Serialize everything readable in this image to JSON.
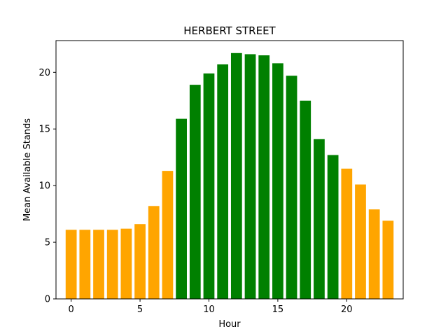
{
  "chart_data": {
    "type": "bar",
    "title": "HERBERT STREET",
    "xlabel": "Hour",
    "ylabel": "Mean Available Stands",
    "x": [
      0,
      1,
      2,
      3,
      4,
      5,
      6,
      7,
      8,
      9,
      10,
      11,
      12,
      13,
      14,
      15,
      16,
      17,
      18,
      19,
      20,
      21,
      22,
      23
    ],
    "values": [
      6.1,
      6.1,
      6.1,
      6.1,
      6.2,
      6.6,
      8.2,
      11.3,
      15.9,
      18.9,
      19.9,
      20.7,
      21.7,
      21.6,
      21.5,
      20.8,
      19.7,
      17.5,
      14.1,
      12.7,
      11.5,
      10.1,
      7.9,
      6.9
    ],
    "bar_colors": [
      "#ffa500",
      "#ffa500",
      "#ffa500",
      "#ffa500",
      "#ffa500",
      "#ffa500",
      "#ffa500",
      "#ffa500",
      "#008000",
      "#008000",
      "#008000",
      "#008000",
      "#008000",
      "#008000",
      "#008000",
      "#008000",
      "#008000",
      "#008000",
      "#008000",
      "#008000",
      "#ffa500",
      "#ffa500",
      "#ffa500",
      "#ffa500"
    ],
    "xticks": [
      0,
      5,
      10,
      15,
      20
    ],
    "yticks": [
      0,
      5,
      10,
      15,
      20
    ],
    "xlim": [
      -1.1,
      24.1
    ],
    "ylim": [
      0,
      22.8
    ],
    "grid": false,
    "legend": false
  }
}
